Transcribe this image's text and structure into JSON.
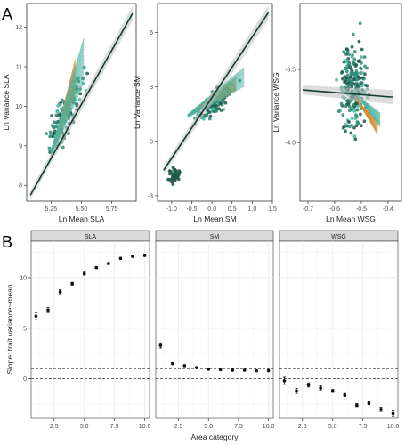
{
  "panel_labels": {
    "a": "A",
    "b": "B"
  },
  "colors": {
    "dark_line": "#0f3d2e",
    "ci_ribbon": "#bfbfbf",
    "pts_dark": "#1e5a4a",
    "pts_mid": "#2f8a78",
    "pts_teal": "#4fb3a3",
    "pts_orange": "#d68a2a",
    "strip_bg": "#d9d9d9",
    "panel_bg": "#ffffff",
    "grid": "#ebebeb",
    "dashed": "#333333",
    "errbar_point": "#111111"
  },
  "chart_data": [
    {
      "type": "scatter",
      "panel": "A-1",
      "xlabel": "Ln Mean SLA",
      "ylabel": "Ln Variance SLA",
      "xlim": [
        5.05,
        5.95
      ],
      "ylim": [
        7.6,
        12.6
      ],
      "xticks": [
        5.25,
        5.5,
        5.75
      ],
      "xtick_labels": [
        "5.25",
        "5.50",
        "5.75"
      ],
      "yticks": [
        8,
        9,
        10,
        11,
        12
      ],
      "yticks_labels": [
        "8",
        "9",
        "10",
        "11",
        "12"
      ],
      "grid": false,
      "fit_line": {
        "x": [
          5.08,
          5.92
        ],
        "y": [
          7.75,
          12.35
        ]
      },
      "cloud": {
        "x_center": 5.37,
        "y_center": 9.8,
        "slope": 5.4,
        "x_spread": 0.16,
        "y_noise": 0.35,
        "n": 140
      },
      "fans": [
        {
          "x": [
            5.28,
            5.45
          ],
          "y": [
            9.0,
            10.8
          ],
          "color": "orange"
        },
        {
          "x": [
            5.25,
            5.52
          ],
          "y": [
            8.8,
            11.2
          ],
          "color": "teal"
        }
      ]
    },
    {
      "type": "scatter",
      "panel": "A-2",
      "xlabel": "Ln Mean SM",
      "ylabel": "Ln Variance SM",
      "xlim": [
        -1.35,
        1.5
      ],
      "ylim": [
        -3.3,
        7.6
      ],
      "xticks": [
        -1.0,
        -0.5,
        0.0,
        0.5,
        1.0,
        1.5
      ],
      "xtick_labels": [
        "-1.0",
        "-0.5",
        "0.0",
        "0.5",
        "1.0",
        "1.5"
      ],
      "yticks": [
        -3,
        0,
        3,
        6
      ],
      "ytick_labels": [
        "-3",
        "0",
        "3",
        "6"
      ],
      "grid": false,
      "fit_line": {
        "x": [
          -1.2,
          1.4
        ],
        "y": [
          -1.6,
          7.1
        ]
      },
      "cloud": {
        "x_center": 0.1,
        "y_center": 2.2,
        "slope": 1.6,
        "x_spread": 0.55,
        "y_noise": 0.45,
        "n": 140
      },
      "cluster": {
        "x_center": -0.95,
        "y_center": -1.9,
        "x_spread": 0.25,
        "y_noise": 0.5,
        "n": 35
      },
      "fans": [
        {
          "x": [
            -0.5,
            0.6
          ],
          "y": [
            1.6,
            3.2
          ],
          "color": "orange"
        },
        {
          "x": [
            -0.6,
            0.8
          ],
          "y": [
            1.4,
            3.6
          ],
          "color": "teal"
        }
      ]
    },
    {
      "type": "scatter",
      "panel": "A-3",
      "xlabel": "Ln Mean WSG",
      "ylabel": "Ln Variance WSG",
      "xlim": [
        -0.73,
        -0.35
      ],
      "ylim": [
        -4.4,
        -3.05
      ],
      "xticks": [
        -0.7,
        -0.6,
        -0.5,
        -0.4
      ],
      "xtick_labels": [
        "-0.7",
        "-0.6",
        "-0.5",
        "-0.4"
      ],
      "yticks": [
        -4.0,
        -3.5
      ],
      "ytick_labels": [
        "-4.0",
        "-3.5"
      ],
      "grid": false,
      "fit_line": {
        "x": [
          -0.72,
          -0.38
        ],
        "y": [
          -3.64,
          -3.69
        ]
      },
      "cloud": {
        "x_center": -0.53,
        "y_center": -3.62,
        "slope": 0,
        "x_spread": 0.06,
        "y_noise": 0.22,
        "n": 240
      },
      "fans": [
        {
          "x": [
            -0.52,
            -0.44
          ],
          "y": [
            -3.7,
            -3.9
          ],
          "color": "orange"
        },
        {
          "x": [
            -0.53,
            -0.43
          ],
          "y": [
            -3.65,
            -3.85
          ],
          "color": "teal"
        }
      ]
    },
    {
      "type": "scatter",
      "panel": "B",
      "xlabel": "Area category",
      "ylabel": "Slope: trait variance~mean",
      "xlim": [
        0.6,
        10.4
      ],
      "ylim": [
        -3.9,
        13.6
      ],
      "xticks": [
        2.5,
        5.0,
        7.5,
        10.0
      ],
      "xtick_labels": [
        "2.5",
        "5.0",
        "7.5",
        "10.0"
      ],
      "yticks": [
        0,
        5,
        10
      ],
      "ytick_labels": [
        "0",
        "5",
        "10"
      ],
      "grid": true,
      "hlines": [
        0,
        1
      ],
      "facets": [
        {
          "title": "SLA",
          "x": [
            1,
            2,
            3,
            4,
            5,
            6,
            7,
            8,
            9,
            10
          ],
          "y": [
            6.2,
            6.8,
            8.6,
            9.4,
            10.4,
            11.0,
            11.4,
            11.9,
            12.1,
            12.2
          ],
          "err": [
            0.35,
            0.25,
            0.2,
            0.15,
            0.15,
            0.1,
            0.1,
            0.1,
            0.1,
            0.12
          ]
        },
        {
          "title": "SM",
          "x": [
            1,
            2,
            3,
            4,
            5,
            6,
            7,
            8,
            9,
            10
          ],
          "y": [
            3.3,
            1.5,
            1.3,
            1.1,
            0.95,
            0.9,
            0.85,
            0.85,
            0.8,
            0.8
          ],
          "err": [
            0.25,
            0.1,
            0.08,
            0.06,
            0.05,
            0.05,
            0.05,
            0.05,
            0.05,
            0.05
          ]
        },
        {
          "title": "WSG",
          "x": [
            1,
            2,
            3,
            4,
            5,
            6,
            7,
            8,
            9,
            10
          ],
          "y": [
            -0.2,
            -1.2,
            -0.6,
            -0.9,
            -1.2,
            -1.6,
            -2.6,
            -2.4,
            -3.0,
            -3.4
          ],
          "err": [
            0.35,
            0.25,
            0.2,
            0.2,
            0.15,
            0.15,
            0.15,
            0.15,
            0.2,
            0.25
          ]
        }
      ]
    }
  ]
}
